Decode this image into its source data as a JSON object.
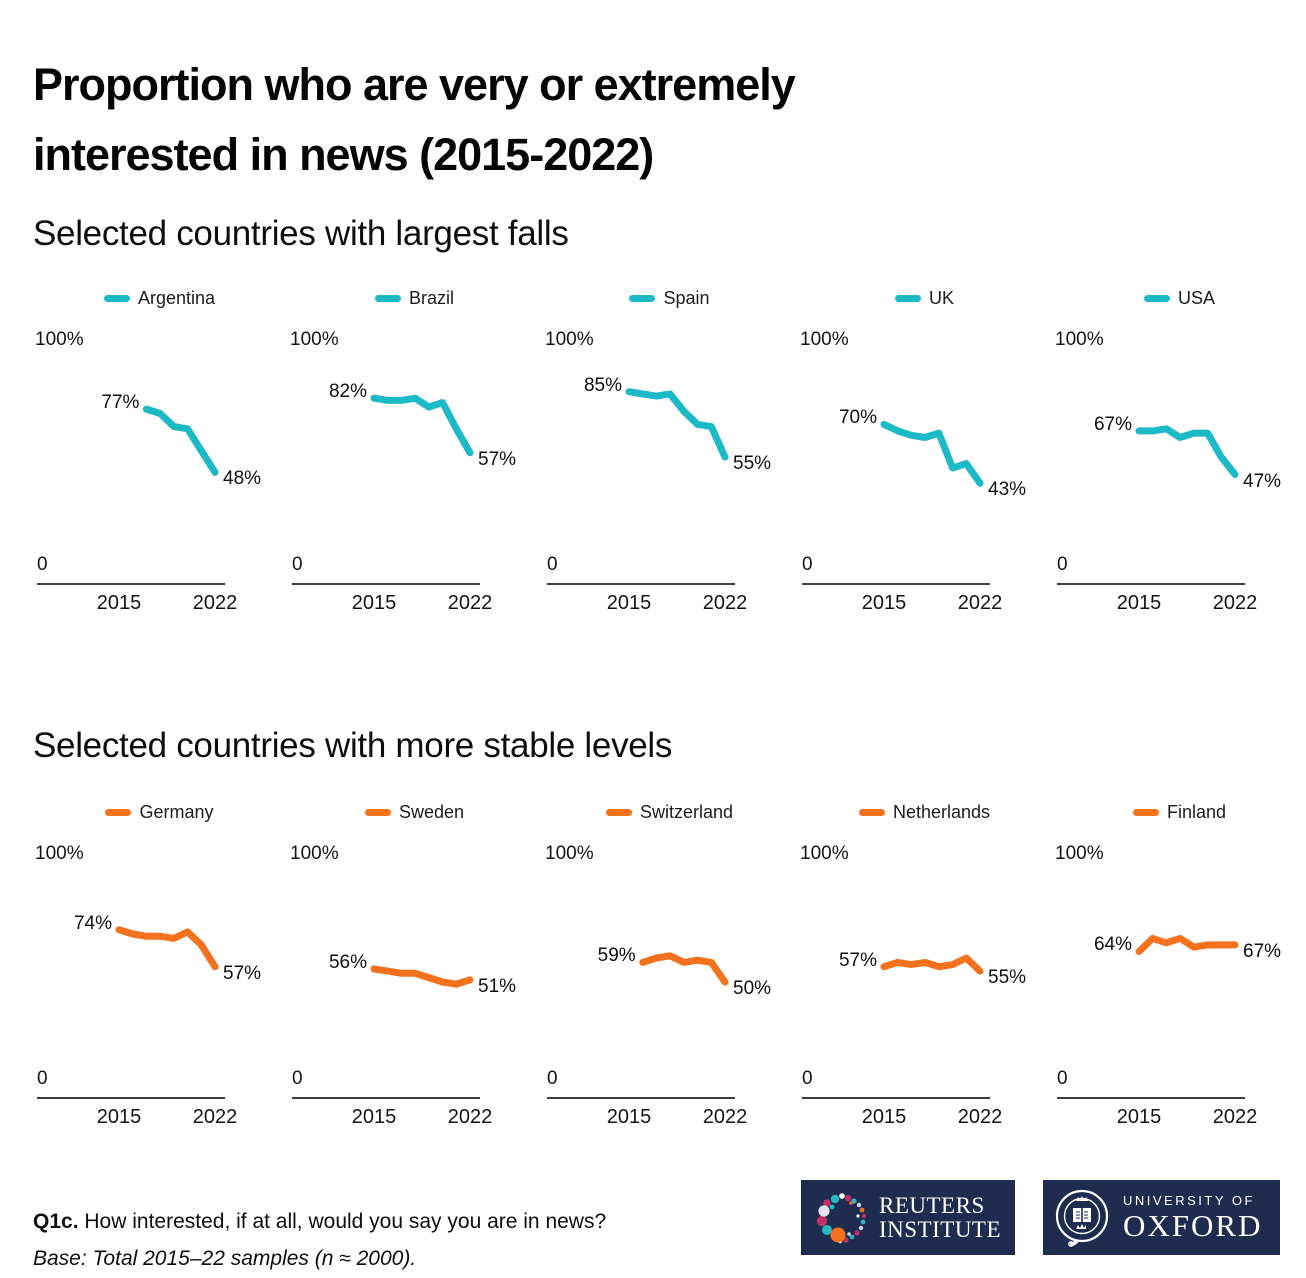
{
  "header": {
    "title": "Proportion who are very or extremely interested in news (2015-2022)"
  },
  "sections": [
    {
      "title": "Selected countries with largest falls"
    },
    {
      "title": "Selected countries with more stable levels"
    }
  ],
  "colors": {
    "falls_line": "#1CB9C6",
    "stable_line": "#F4721E",
    "logo_navy": "#1D2C4F",
    "axis": "#3D3D3D",
    "text": "#111111"
  },
  "axes": {
    "y_max_label": "100%",
    "y_min_label": "0",
    "x_first_label": "2015",
    "x_last_label": "2022",
    "ylim": [
      0,
      100
    ],
    "xlim": [
      2015,
      2022
    ],
    "grid": false,
    "legend_position": "top-center"
  },
  "chart_data": [
    {
      "type": "line",
      "group": "largest_falls",
      "name": "Argentina",
      "color": "#1CB9C6",
      "x": [
        2017,
        2018,
        2019,
        2020,
        2021,
        2022
      ],
      "y": [
        77,
        75,
        69,
        68,
        58,
        48
      ],
      "start_label": "77%",
      "end_label": "48%"
    },
    {
      "type": "line",
      "group": "largest_falls",
      "name": "Brazil",
      "color": "#1CB9C6",
      "x": [
        2015,
        2016,
        2017,
        2018,
        2019,
        2020,
        2021,
        2022
      ],
      "y": [
        82,
        81,
        81,
        82,
        78,
        80,
        68,
        57
      ],
      "start_label": "82%",
      "end_label": "57%"
    },
    {
      "type": "line",
      "group": "largest_falls",
      "name": "Spain",
      "color": "#1CB9C6",
      "x": [
        2015,
        2016,
        2017,
        2018,
        2019,
        2020,
        2021,
        2022
      ],
      "y": [
        85,
        84,
        83,
        84,
        76,
        70,
        69,
        55
      ],
      "start_label": "85%",
      "end_label": "55%"
    },
    {
      "type": "line",
      "group": "largest_falls",
      "name": "UK",
      "color": "#1CB9C6",
      "x": [
        2015,
        2016,
        2017,
        2018,
        2019,
        2020,
        2021,
        2022
      ],
      "y": [
        70,
        67,
        65,
        64,
        66,
        50,
        52,
        43
      ],
      "start_label": "70%",
      "end_label": "43%"
    },
    {
      "type": "line",
      "group": "largest_falls",
      "name": "USA",
      "color": "#1CB9C6",
      "x": [
        2015,
        2016,
        2017,
        2018,
        2019,
        2020,
        2021,
        2022
      ],
      "y": [
        67,
        67,
        68,
        64,
        66,
        66,
        55,
        47
      ],
      "start_label": "67%",
      "end_label": "47%"
    },
    {
      "type": "line",
      "group": "more_stable",
      "name": "Germany",
      "color": "#F4721E",
      "x": [
        2015,
        2016,
        2017,
        2018,
        2019,
        2020,
        2021,
        2022
      ],
      "y": [
        74,
        72,
        71,
        71,
        70,
        73,
        67,
        57
      ],
      "start_label": "74%",
      "end_label": "57%"
    },
    {
      "type": "line",
      "group": "more_stable",
      "name": "Sweden",
      "color": "#F4721E",
      "x": [
        2015,
        2016,
        2017,
        2018,
        2019,
        2020,
        2021,
        2022
      ],
      "y": [
        56,
        55,
        54,
        54,
        52,
        50,
        49,
        51
      ],
      "start_label": "56%",
      "end_label": "51%"
    },
    {
      "type": "line",
      "group": "more_stable",
      "name": "Switzerland",
      "color": "#F4721E",
      "x": [
        2016,
        2017,
        2018,
        2019,
        2020,
        2021,
        2022
      ],
      "y": [
        59,
        61,
        62,
        59,
        60,
        59,
        50
      ],
      "start_label": "59%",
      "end_label": "50%"
    },
    {
      "type": "line",
      "group": "more_stable",
      "name": "Netherlands",
      "color": "#F4721E",
      "x": [
        2015,
        2016,
        2017,
        2018,
        2019,
        2020,
        2021,
        2022
      ],
      "y": [
        57,
        59,
        58,
        59,
        57,
        58,
        61,
        55
      ],
      "start_label": "57%",
      "end_label": "55%"
    },
    {
      "type": "line",
      "group": "more_stable",
      "name": "Finland",
      "color": "#F4721E",
      "x": [
        2015,
        2016,
        2017,
        2018,
        2019,
        2020,
        2021,
        2022
      ],
      "y": [
        64,
        70,
        68,
        70,
        66,
        67,
        67,
        67
      ],
      "start_label": "64%",
      "end_label": "67%"
    }
  ],
  "footer": {
    "question_code": "Q1c.",
    "question_text": "How interested, if at all, would you say you are in news?",
    "base_text": "Base: Total 2015–22 samples (n ≈ 2000).",
    "logos": {
      "reuters": {
        "line1": "REUTERS",
        "line2": "INSTITUTE"
      },
      "oxford": {
        "line1": "UNIVERSITY OF",
        "line2": "OXFORD",
        "crest_text": "UNIVERSITY OF OXFORD"
      }
    }
  }
}
